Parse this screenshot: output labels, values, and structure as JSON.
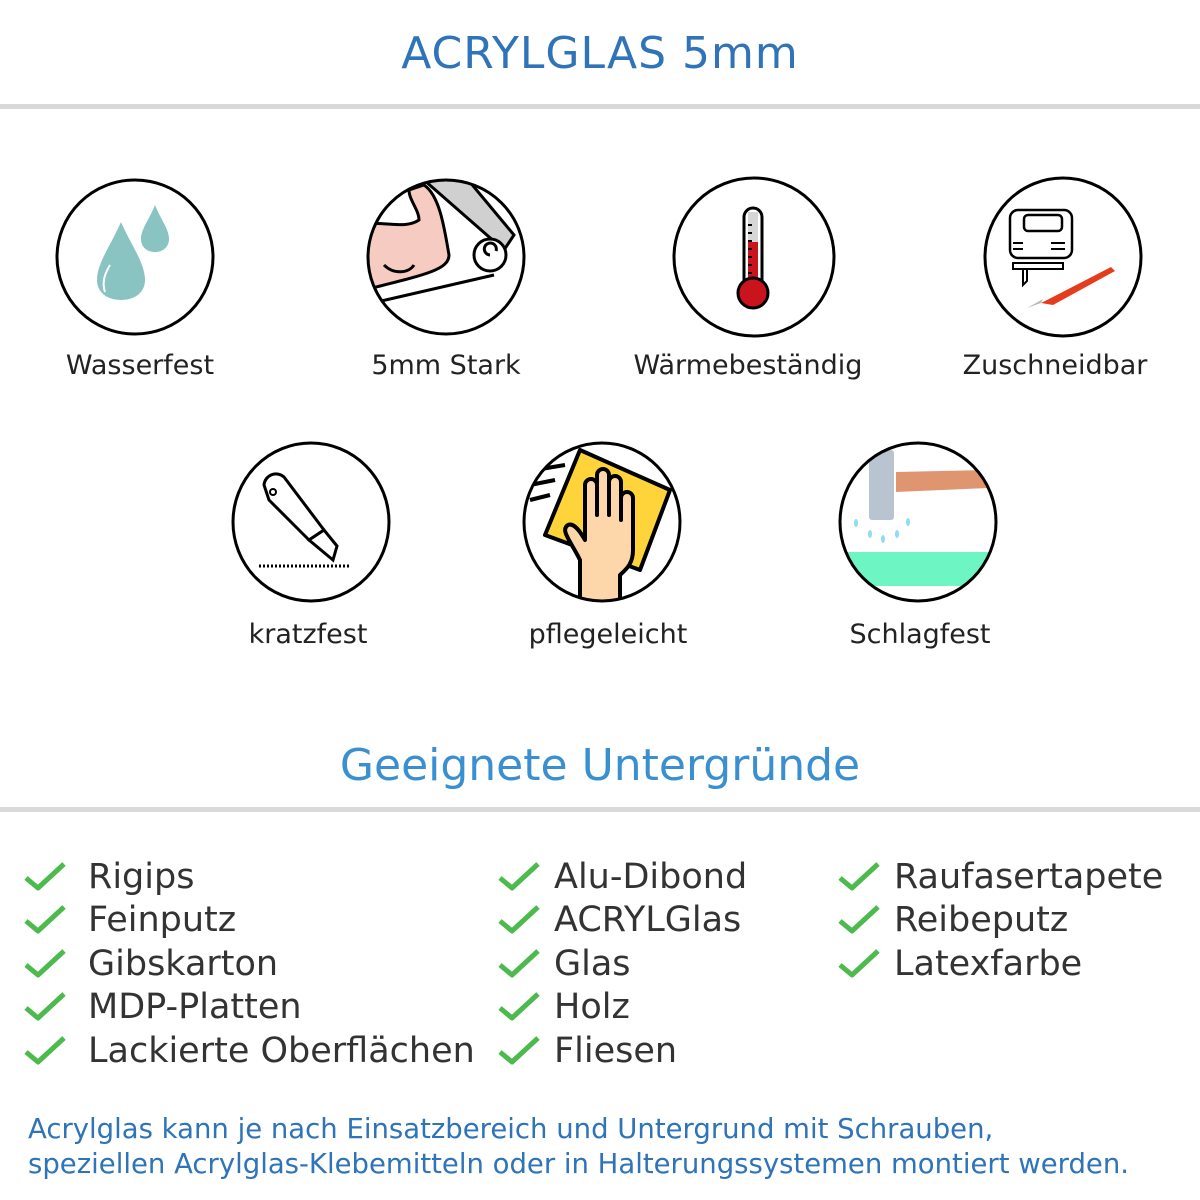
{
  "header": {
    "title": "ACRYLGLAS 5mm"
  },
  "features": [
    {
      "label": "Wasserfest",
      "icon": "water-drops-icon"
    },
    {
      "label": "5mm Stark",
      "icon": "flexed-arm-icon"
    },
    {
      "label": "Wärmebeständig",
      "icon": "thermometer-icon"
    },
    {
      "label": "Zuschneidbar",
      "icon": "jigsaw-knife-icon"
    },
    {
      "label": "kratzfest",
      "icon": "cutter-knife-icon"
    },
    {
      "label": "pflegeleicht",
      "icon": "hand-cloth-icon"
    },
    {
      "label": "Schlagfest",
      "icon": "hammer-icon"
    }
  ],
  "surfaces": {
    "heading": "Geeignete Untergründe",
    "columns": [
      [
        "Rigips",
        "Feinputz",
        "Gibskarton",
        "MDP-Platten",
        "Lackierte Oberflächen"
      ],
      [
        "Alu-Dibond",
        "ACRYLGlas",
        "Glas",
        "Holz",
        "Fliesen"
      ],
      [
        "Raufasertapete",
        "Reibeputz",
        "Latexfarbe"
      ]
    ]
  },
  "note": {
    "line1": "Acrylglas kann je nach Einsatzbereich und Untergrund mit Schrauben,",
    "line2": "speziellen Acrylglas-Klebemitteln oder in Halterungssystemen montiert werden."
  },
  "colors": {
    "title": "#2f73b8",
    "heading": "#3a8fd0",
    "check": "#4cba4c",
    "divider": "#d9d9d9"
  }
}
